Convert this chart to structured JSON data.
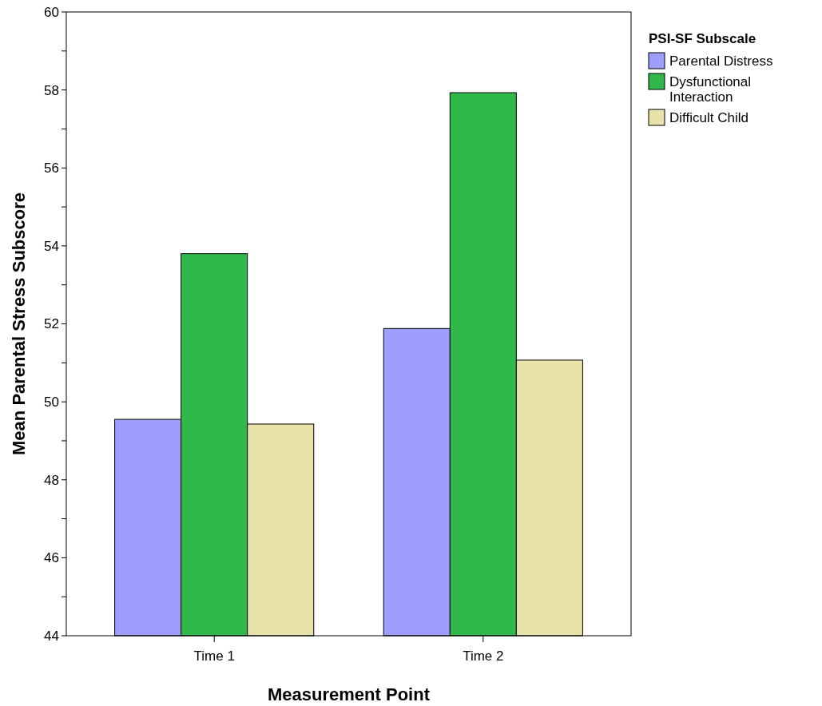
{
  "chart_data": {
    "type": "bar",
    "xlabel": "Measurement Point",
    "ylabel": "Mean Parental Stress Subscore",
    "legend_title": "PSI-SF Subscale",
    "legend": "top right",
    "grid": false,
    "categories": [
      "Time 1",
      "Time 2"
    ],
    "series": [
      {
        "name": "Parental Distress",
        "color": "#9e9eff",
        "values": [
          49.55,
          51.88
        ]
      },
      {
        "name": "Dysfunctional Interaction",
        "color": "#31b84a",
        "values": [
          53.8,
          57.93
        ]
      },
      {
        "name": "Difficult Child",
        "color": "#e6e2aa",
        "values": [
          49.43,
          51.07
        ]
      }
    ],
    "ylim": [
      44,
      60
    ],
    "yticks": [
      44,
      {
        "value": 45,
        "label": null
      },
      46,
      {
        "value": 47,
        "label": null
      },
      48,
      {
        "value": 49,
        "label": null
      },
      50,
      {
        "value": 51,
        "label": null
      },
      52,
      {
        "value": 53,
        "label": null
      },
      54,
      {
        "value": 55,
        "label": null
      },
      56,
      {
        "value": 57,
        "label": null
      },
      58,
      {
        "value": 59,
        "label": null
      },
      60
    ]
  }
}
